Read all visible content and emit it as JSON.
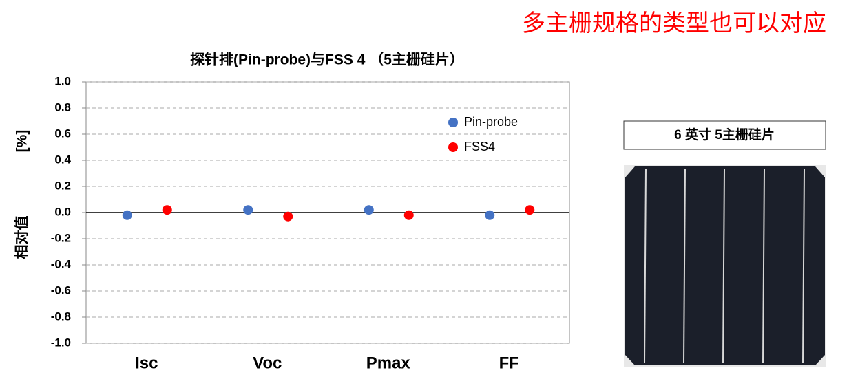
{
  "headline": "多主栅规格的类型也可以对应",
  "photo_caption": "6 英寸  5主栅硅片",
  "chart_data": {
    "type": "dot",
    "title": "探针排(Pin-probe)与FSS 4 （5主栅硅片）",
    "ylabel": "相对值",
    "ylabel_unit": "[%]",
    "categories": [
      "Isc",
      "Voc",
      "Pmax",
      "FF"
    ],
    "series": [
      {
        "name": "Pin-probe",
        "color": "#4472c4",
        "values": [
          -0.02,
          0.02,
          0.02,
          -0.02
        ]
      },
      {
        "name": "FSS4",
        "color": "#ff0000",
        "values": [
          0.02,
          -0.03,
          -0.02,
          0.02
        ]
      }
    ],
    "ylim": [
      -1,
      1
    ],
    "yticks": [
      {
        "value": -1,
        "label": "-1.0"
      },
      -0.8,
      -0.6,
      -0.4,
      -0.2,
      {
        "value": 0,
        "label": "0.0"
      },
      0.2,
      0.4,
      0.6,
      0.8,
      {
        "value": 1,
        "label": "1.0"
      }
    ],
    "grid": true
  }
}
